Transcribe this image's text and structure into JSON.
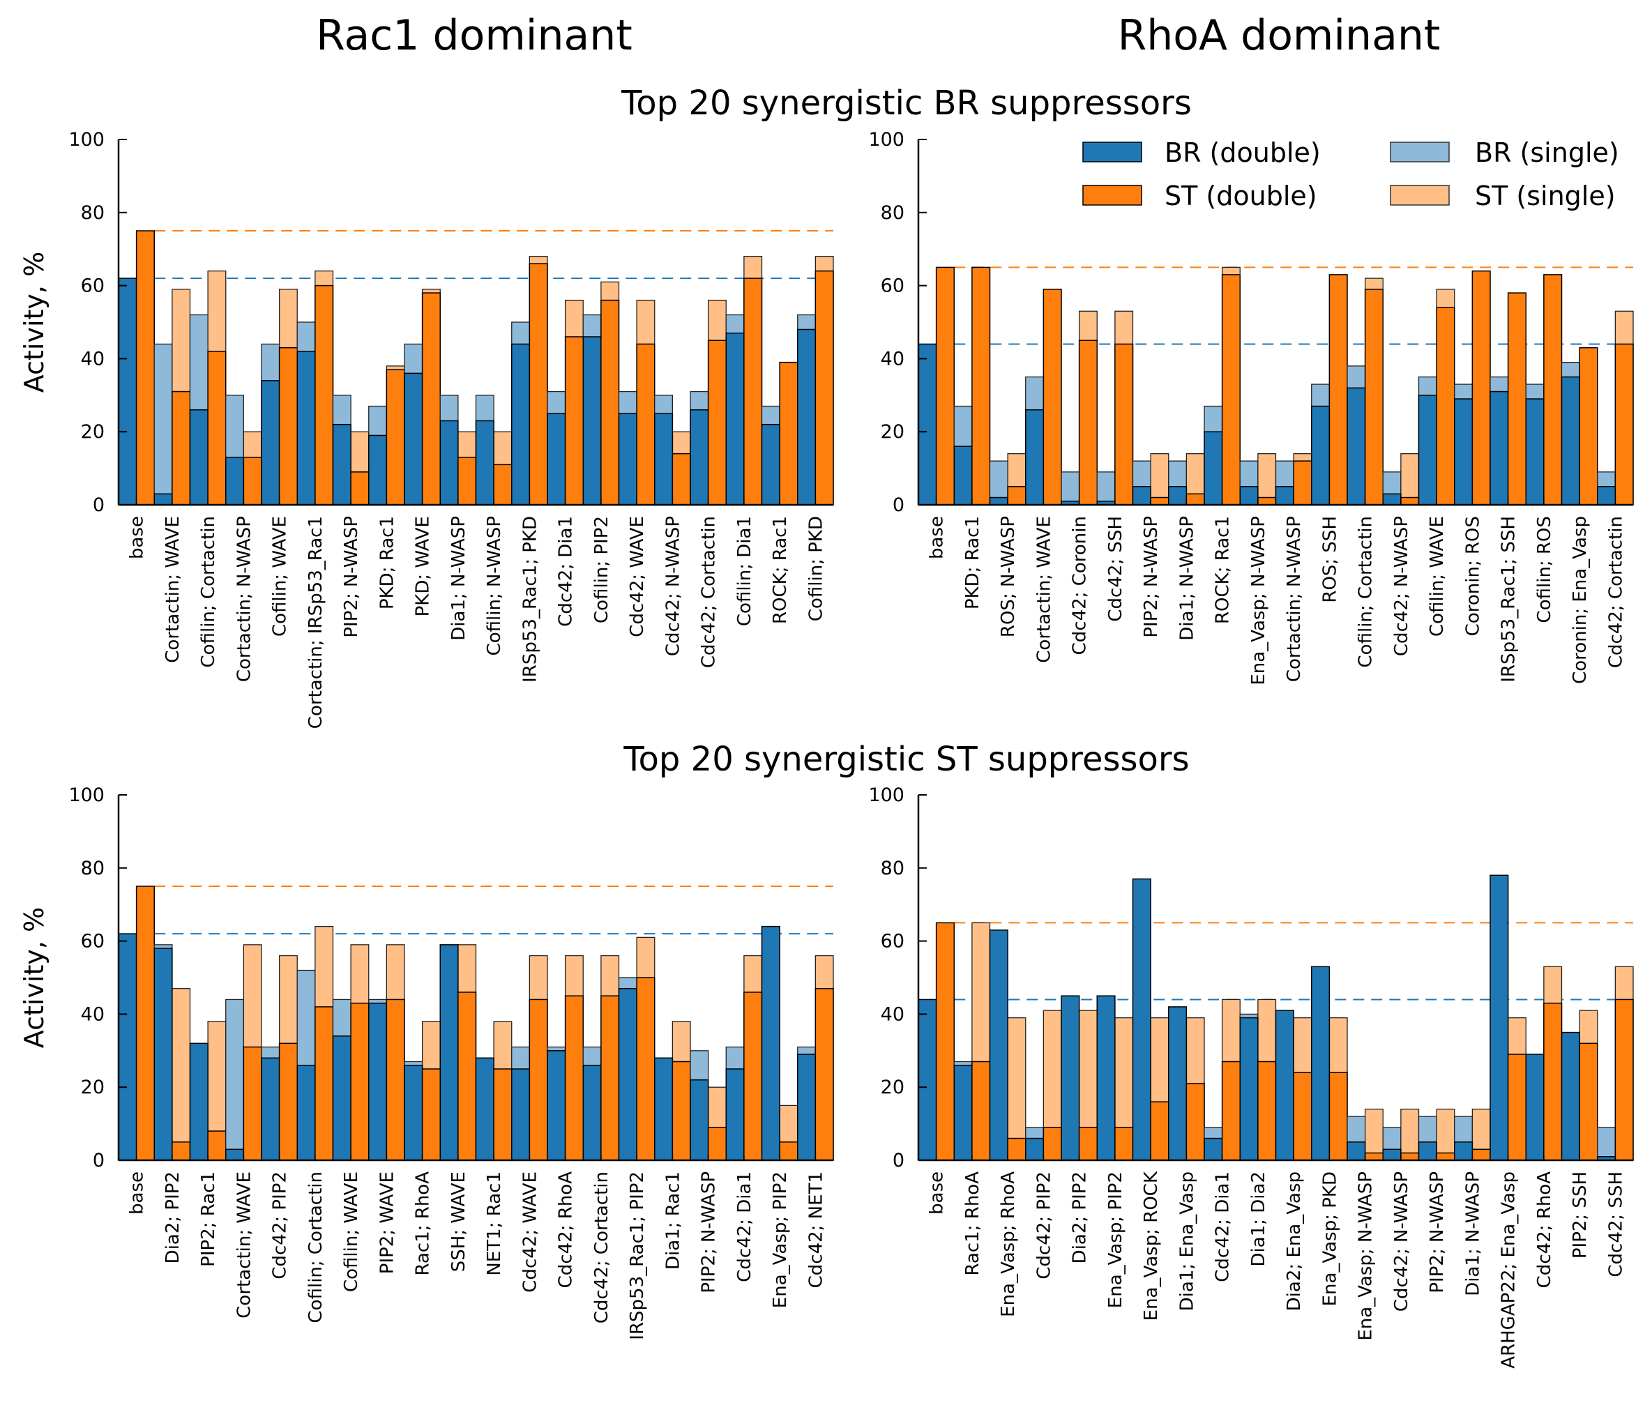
{
  "titles": {
    "left_column": "Rac1 dominant",
    "right_column": "RhoA dominant",
    "top_section": "Top 20 synergistic BR suppressors",
    "bottom_section": "Top 20 synergistic ST suppressors"
  },
  "legend": {
    "br_double": "BR (double)",
    "st_double": "ST (double)",
    "br_single": "BR (single)",
    "st_single": "ST (single)"
  },
  "colors": {
    "br_double": "#1f77b4",
    "st_double": "#ff7f0e",
    "br_single": "#8fb9d9",
    "st_single": "#ffbf87"
  },
  "chart_data": [
    {
      "panel": "Rac1 dominant / BR suppressors",
      "type": "bar",
      "ylabel": "Activity, %",
      "ylim": [
        0,
        100
      ],
      "yticks": [
        0,
        20,
        40,
        60,
        80,
        100
      ],
      "baselines": {
        "br": 62,
        "st": 75
      },
      "categories": [
        "base",
        "Cortactin; WAVE",
        "Cofilin; Cortactin",
        "Cortactin; N-WASP",
        "Cofilin; WAVE",
        "Cortactin; IRSp53_Rac1",
        "PIP2; N-WASP",
        "PKD; Rac1",
        "PKD; WAVE",
        "Dia1; N-WASP",
        "Cofilin; N-WASP",
        "IRSp53_Rac1; PKD",
        "Cdc42; Dia1",
        "Cofilin; PIP2",
        "Cdc42; WAVE",
        "Cdc42; N-WASP",
        "Cdc42; Cortactin",
        "Cofilin; Dia1",
        "ROCK; Rac1",
        "Cofilin; PKD"
      ],
      "series": [
        {
          "name": "BR (double)",
          "values": [
            62,
            3,
            26,
            13,
            34,
            42,
            22,
            19,
            36,
            23,
            23,
            44,
            25,
            46,
            25,
            25,
            26,
            47,
            22,
            48
          ]
        },
        {
          "name": "BR (single)",
          "values": [
            62,
            44,
            52,
            30,
            44,
            50,
            30,
            27,
            44,
            30,
            30,
            50,
            31,
            52,
            31,
            30,
            31,
            52,
            27,
            52
          ]
        },
        {
          "name": "ST (double)",
          "values": [
            75,
            31,
            42,
            13,
            43,
            60,
            9,
            37,
            58,
            13,
            11,
            66,
            46,
            56,
            44,
            14,
            45,
            62,
            39,
            64
          ]
        },
        {
          "name": "ST (single)",
          "values": [
            75,
            59,
            64,
            20,
            59,
            64,
            20,
            38,
            59,
            20,
            20,
            68,
            56,
            61,
            56,
            20,
            56,
            68,
            39,
            68
          ]
        }
      ]
    },
    {
      "panel": "RhoA dominant / BR suppressors",
      "type": "bar",
      "ylabel": "",
      "ylim": [
        0,
        100
      ],
      "yticks": [
        0,
        20,
        40,
        60,
        80,
        100
      ],
      "baselines": {
        "br": 44,
        "st": 65
      },
      "categories": [
        "base",
        "PKD; Rac1",
        "ROS; N-WASP",
        "Cortactin; WAVE",
        "Cdc42; Coronin",
        "Cdc42; SSH",
        "PIP2; N-WASP",
        "Dia1; N-WASP",
        "ROCK; Rac1",
        "Ena_Vasp; N-WASP",
        "Cortactin; N-WASP",
        "ROS; SSH",
        "Cofilin; Cortactin",
        "Cdc42; N-WASP",
        "Cofilin; WAVE",
        "Coronin; ROS",
        "IRSp53_Rac1; SSH",
        "Cofilin; ROS",
        "Coronin; Ena_Vasp",
        "Cdc42; Cortactin"
      ],
      "series": [
        {
          "name": "BR (double)",
          "values": [
            44,
            16,
            2,
            26,
            1,
            1,
            5,
            5,
            20,
            5,
            5,
            27,
            32,
            3,
            30,
            29,
            31,
            29,
            35,
            5
          ]
        },
        {
          "name": "BR (single)",
          "values": [
            44,
            27,
            12,
            35,
            9,
            9,
            12,
            12,
            27,
            12,
            12,
            33,
            38,
            9,
            35,
            33,
            35,
            33,
            39,
            9
          ]
        },
        {
          "name": "ST (double)",
          "values": [
            65,
            65,
            5,
            59,
            45,
            44,
            2,
            3,
            63,
            2,
            12,
            63,
            59,
            2,
            54,
            64,
            58,
            63,
            43,
            44
          ]
        },
        {
          "name": "ST (single)",
          "values": [
            65,
            65,
            14,
            59,
            53,
            53,
            14,
            14,
            65,
            14,
            14,
            63,
            62,
            14,
            59,
            64,
            58,
            63,
            43,
            53
          ]
        }
      ]
    },
    {
      "panel": "Rac1 dominant / ST suppressors",
      "type": "bar",
      "ylabel": "Activity, %",
      "ylim": [
        0,
        100
      ],
      "yticks": [
        0,
        20,
        40,
        60,
        80,
        100
      ],
      "baselines": {
        "br": 62,
        "st": 75
      },
      "categories": [
        "base",
        "Dia2; PIP2",
        "PIP2; Rac1",
        "Cortactin; WAVE",
        "Cdc42; PIP2",
        "Cofilin; Cortactin",
        "Cofilin; WAVE",
        "PIP2; WAVE",
        "Rac1; RhoA",
        "SSH; WAVE",
        "NET1; Rac1",
        "Cdc42; WAVE",
        "Cdc42; RhoA",
        "Cdc42; Cortactin",
        "IRSp53_Rac1; PIP2",
        "Dia1; Rac1",
        "PIP2; N-WASP",
        "Cdc42; Dia1",
        "Ena_Vasp; PIP2",
        "Cdc42; NET1"
      ],
      "series": [
        {
          "name": "BR (double)",
          "values": [
            62,
            58,
            32,
            3,
            28,
            26,
            34,
            43,
            26,
            59,
            28,
            25,
            30,
            26,
            47,
            28,
            22,
            25,
            64,
            29
          ]
        },
        {
          "name": "BR (single)",
          "values": [
            62,
            59,
            32,
            44,
            31,
            52,
            44,
            44,
            27,
            59,
            28,
            31,
            31,
            31,
            50,
            28,
            30,
            31,
            64,
            31
          ]
        },
        {
          "name": "ST (double)",
          "values": [
            75,
            5,
            8,
            31,
            32,
            42,
            43,
            44,
            25,
            46,
            25,
            44,
            45,
            45,
            50,
            27,
            9,
            46,
            5,
            47
          ]
        },
        {
          "name": "ST (single)",
          "values": [
            75,
            47,
            38,
            59,
            56,
            64,
            59,
            59,
            38,
            59,
            38,
            56,
            56,
            56,
            61,
            38,
            20,
            56,
            15,
            56
          ]
        }
      ]
    },
    {
      "panel": "RhoA dominant / ST suppressors",
      "type": "bar",
      "ylabel": "",
      "ylim": [
        0,
        100
      ],
      "yticks": [
        0,
        20,
        40,
        60,
        80,
        100
      ],
      "baselines": {
        "br": 44,
        "st": 65
      },
      "categories": [
        "base",
        "Rac1; RhoA",
        "Ena_Vasp; RhoA",
        "Cdc42; PIP2",
        "Dia2; PIP2",
        "Ena_Vasp; PIP2",
        "Ena_Vasp; ROCK",
        "Dia1; Ena_Vasp",
        "Cdc42; Dia1",
        "Dia1; Dia2",
        "Dia2; Ena_Vasp",
        "Ena_Vasp; PKD",
        "Ena_Vasp; N-WASP",
        "Cdc42; N-WASP",
        "PIP2; N-WASP",
        "Dia1; N-WASP",
        "ARHGAP22; Ena_Vasp",
        "Cdc42; RhoA",
        "PIP2; SSH",
        "Cdc42; SSH"
      ],
      "series": [
        {
          "name": "BR (double)",
          "values": [
            44,
            26,
            63,
            6,
            45,
            45,
            77,
            42,
            6,
            39,
            41,
            53,
            5,
            3,
            5,
            5,
            78,
            29,
            35,
            1
          ]
        },
        {
          "name": "BR (single)",
          "values": [
            44,
            27,
            63,
            9,
            45,
            45,
            77,
            42,
            9,
            40,
            41,
            53,
            12,
            9,
            12,
            12,
            78,
            29,
            35,
            9
          ]
        },
        {
          "name": "ST (double)",
          "values": [
            65,
            27,
            6,
            9,
            9,
            9,
            16,
            21,
            27,
            27,
            24,
            24,
            2,
            2,
            2,
            3,
            29,
            43,
            32,
            44
          ]
        },
        {
          "name": "ST (single)",
          "values": [
            65,
            65,
            39,
            41,
            41,
            39,
            39,
            39,
            44,
            44,
            39,
            39,
            14,
            14,
            14,
            14,
            39,
            53,
            41,
            53
          ]
        }
      ]
    }
  ]
}
